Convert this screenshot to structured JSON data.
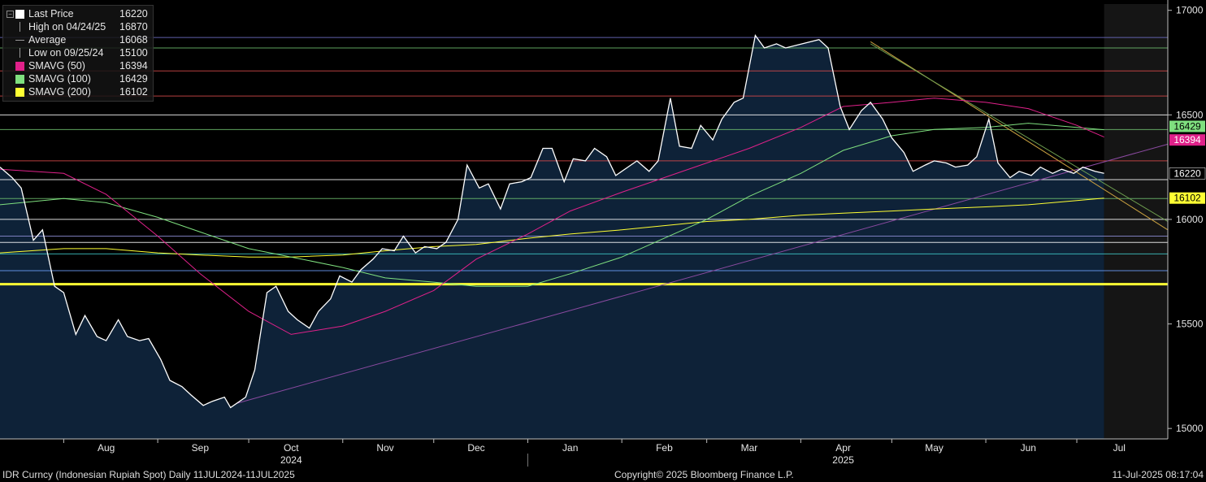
{
  "legend": {
    "items": [
      {
        "label": "Last Price",
        "value": "16220",
        "symbol": "square",
        "color": "#ffffff"
      },
      {
        "label": "High on 04/24/25",
        "value": "16870",
        "symbol": "high-marker",
        "color": "#9a9a9a"
      },
      {
        "label": "Average",
        "value": "16068",
        "symbol": "average-marker",
        "color": "#9a9a9a"
      },
      {
        "label": "Low on 09/25/24",
        "value": "15100",
        "symbol": "low-marker",
        "color": "#9a9a9a"
      },
      {
        "label": "SMAVG (50)",
        "value": "16394",
        "symbol": "square",
        "color": "#e0218a"
      },
      {
        "label": "SMAVG (100)",
        "value": "16429",
        "symbol": "square",
        "color": "#7fe07f"
      },
      {
        "label": "SMAVG (200)",
        "value": "16102",
        "symbol": "square",
        "color": "#ffff33"
      }
    ]
  },
  "footer": {
    "left": "IDR Curncy (Indonesian Rupiah Spot)  Daily 11JUL2024-11JUL2025",
    "center": "Copyright© 2025 Bloomberg Finance L.P.",
    "right": "11-Jul-2025 08:17:04"
  },
  "value_tags": [
    {
      "value": "16429",
      "color": "#7fe07f",
      "text_color": "#000000"
    },
    {
      "value": "16394",
      "color": "#e0218a",
      "text_color": "#ffffff"
    },
    {
      "value": "16220",
      "color": "#000000",
      "text_color": "#ffffff"
    },
    {
      "value": "16102",
      "color": "#ffff33",
      "text_color": "#000000"
    }
  ],
  "chart_data": {
    "type": "area",
    "ylim": [
      14950,
      17030
    ],
    "y_ticks": [
      15000,
      15500,
      16000,
      16500,
      17000
    ],
    "x_range": [
      "2024-07-11",
      "2025-07-31"
    ],
    "x_month_labels": [
      {
        "label": "Aug",
        "date": "2024-08-15"
      },
      {
        "label": "Sep",
        "date": "2024-09-15"
      },
      {
        "label": "Oct",
        "date": "2024-10-15"
      },
      {
        "label": "Nov",
        "date": "2024-11-15"
      },
      {
        "label": "Dec",
        "date": "2024-12-15"
      },
      {
        "label": "Jan",
        "date": "2025-01-15"
      },
      {
        "label": "Feb",
        "date": "2025-02-15"
      },
      {
        "label": "Mar",
        "date": "2025-03-15"
      },
      {
        "label": "Apr",
        "date": "2025-04-15"
      },
      {
        "label": "May",
        "date": "2025-05-15"
      },
      {
        "label": "Jun",
        "date": "2025-06-15"
      },
      {
        "label": "Jul",
        "date": "2025-07-15"
      }
    ],
    "x_year_labels": [
      {
        "label": "2024",
        "date": "2024-10-15"
      },
      {
        "label": "2025",
        "date": "2025-04-15"
      }
    ],
    "horizontal_lines": [
      {
        "value": 16870,
        "color": "#7070c8"
      },
      {
        "value": 16820,
        "color": "#6fbf6f"
      },
      {
        "value": 16710,
        "color": "#d84a4a"
      },
      {
        "value": 16590,
        "color": "#d84a4a"
      },
      {
        "value": 16500,
        "color": "#ffffff"
      },
      {
        "value": 16430,
        "color": "#6fbf6f"
      },
      {
        "value": 16280,
        "color": "#d84a4a"
      },
      {
        "value": 16190,
        "color": "#ffffff"
      },
      {
        "value": 16100,
        "color": "#6fbf6f"
      },
      {
        "value": 16000,
        "color": "#ffffff"
      },
      {
        "value": 15920,
        "color": "#9090d8"
      },
      {
        "value": 15890,
        "color": "#ffffff"
      },
      {
        "value": 15835,
        "color": "#40c8c8"
      },
      {
        "value": 15755,
        "color": "#6fa0ff"
      },
      {
        "value": 15690,
        "color": "#ffff33",
        "thick": true
      }
    ],
    "trend_lines": [
      {
        "from": [
          "2024-09-27",
          15120
        ],
        "to": [
          "2025-07-31",
          16360
        ],
        "color": "#8a4aa0"
      },
      {
        "from": [
          "2025-04-24",
          16850
        ],
        "to": [
          "2025-07-31",
          15950
        ],
        "color": "#c8a040"
      },
      {
        "from": [
          "2025-04-24",
          16840
        ],
        "to": [
          "2025-07-31",
          15990
        ],
        "color": "#6fa050"
      }
    ],
    "series": [
      {
        "name": "Last Price",
        "color": "#ffffff",
        "fill": "#0e2238",
        "x": [
          "2024-07-11",
          "2024-07-15",
          "2024-07-18",
          "2024-07-22",
          "2024-07-25",
          "2024-07-29",
          "2024-08-01",
          "2024-08-05",
          "2024-08-08",
          "2024-08-12",
          "2024-08-15",
          "2024-08-19",
          "2024-08-22",
          "2024-08-26",
          "2024-08-29",
          "2024-09-02",
          "2024-09-05",
          "2024-09-09",
          "2024-09-12",
          "2024-09-16",
          "2024-09-19",
          "2024-09-23",
          "2024-09-25",
          "2024-09-30",
          "2024-10-03",
          "2024-10-07",
          "2024-10-10",
          "2024-10-14",
          "2024-10-17",
          "2024-10-21",
          "2024-10-24",
          "2024-10-28",
          "2024-10-31",
          "2024-11-04",
          "2024-11-07",
          "2024-11-11",
          "2024-11-14",
          "2024-11-18",
          "2024-11-21",
          "2024-11-25",
          "2024-11-28",
          "2024-12-02",
          "2024-12-05",
          "2024-12-09",
          "2024-12-12",
          "2024-12-16",
          "2024-12-19",
          "2024-12-23",
          "2024-12-26",
          "2024-12-30",
          "2025-01-02",
          "2025-01-06",
          "2025-01-09",
          "2025-01-13",
          "2025-01-16",
          "2025-01-20",
          "2025-01-23",
          "2025-01-27",
          "2025-01-30",
          "2025-02-03",
          "2025-02-06",
          "2025-02-10",
          "2025-02-13",
          "2025-02-17",
          "2025-02-20",
          "2025-02-24",
          "2025-02-27",
          "2025-03-03",
          "2025-03-06",
          "2025-03-10",
          "2025-03-13",
          "2025-03-17",
          "2025-03-20",
          "2025-03-24",
          "2025-03-27",
          "2025-04-07",
          "2025-04-10",
          "2025-04-14",
          "2025-04-17",
          "2025-04-21",
          "2025-04-24",
          "2025-04-28",
          "2025-05-01",
          "2025-05-05",
          "2025-05-08",
          "2025-05-12",
          "2025-05-15",
          "2025-05-19",
          "2025-05-22",
          "2025-05-26",
          "2025-05-29",
          "2025-06-02",
          "2025-06-05",
          "2025-06-09",
          "2025-06-12",
          "2025-06-16",
          "2025-06-19",
          "2025-06-23",
          "2025-06-26",
          "2025-06-30",
          "2025-07-03",
          "2025-07-07",
          "2025-07-10"
        ],
        "values": [
          16250,
          16200,
          16150,
          15900,
          15950,
          15680,
          15650,
          15450,
          15540,
          15440,
          15420,
          15520,
          15440,
          15420,
          15430,
          15330,
          15230,
          15200,
          15160,
          15110,
          15130,
          15150,
          15100,
          15150,
          15280,
          15650,
          15680,
          15560,
          15520,
          15480,
          15560,
          15620,
          15730,
          15700,
          15760,
          15810,
          15860,
          15850,
          15920,
          15840,
          15870,
          15860,
          15890,
          16000,
          16260,
          16150,
          16170,
          16050,
          16170,
          16180,
          16200,
          16340,
          16340,
          16180,
          16290,
          16280,
          16340,
          16300,
          16210,
          16250,
          16280,
          16230,
          16280,
          16580,
          16350,
          16340,
          16450,
          16380,
          16480,
          16560,
          16580,
          16880,
          16820,
          16840,
          16820,
          16860,
          16820,
          16540,
          16430,
          16520,
          16560,
          16480,
          16390,
          16320,
          16230,
          16260,
          16280,
          16270,
          16250,
          16260,
          16300,
          16480,
          16270,
          16200,
          16230,
          16210,
          16250,
          16220,
          16240,
          16220,
          16250,
          16230,
          16220
        ]
      },
      {
        "name": "SMAVG (50)",
        "color": "#e0218a",
        "x": [
          "2024-07-11",
          "2024-08-01",
          "2024-08-15",
          "2024-09-01",
          "2024-09-15",
          "2024-10-01",
          "2024-10-15",
          "2024-11-01",
          "2024-11-15",
          "2024-12-01",
          "2024-12-15",
          "2025-01-01",
          "2025-01-15",
          "2025-02-01",
          "2025-02-15",
          "2025-03-01",
          "2025-03-15",
          "2025-04-01",
          "2025-04-15",
          "2025-05-01",
          "2025-05-15",
          "2025-06-01",
          "2025-06-15",
          "2025-07-01",
          "2025-07-10"
        ],
        "values": [
          16240,
          16220,
          16120,
          15920,
          15740,
          15560,
          15450,
          15490,
          15560,
          15660,
          15810,
          15930,
          16040,
          16130,
          16200,
          16270,
          16340,
          16440,
          16540,
          16560,
          16580,
          16560,
          16530,
          16450,
          16394
        ]
      },
      {
        "name": "SMAVG (100)",
        "color": "#7fe07f",
        "x": [
          "2024-07-11",
          "2024-08-01",
          "2024-08-15",
          "2024-09-01",
          "2024-09-15",
          "2024-10-01",
          "2024-10-15",
          "2024-11-01",
          "2024-11-15",
          "2024-12-01",
          "2024-12-15",
          "2025-01-01",
          "2025-01-15",
          "2025-02-01",
          "2025-02-15",
          "2025-03-01",
          "2025-03-15",
          "2025-04-01",
          "2025-04-15",
          "2025-05-01",
          "2025-05-15",
          "2025-06-01",
          "2025-06-15",
          "2025-07-01",
          "2025-07-10"
        ],
        "values": [
          16070,
          16100,
          16080,
          16010,
          15940,
          15860,
          15820,
          15770,
          15720,
          15700,
          15680,
          15680,
          15740,
          15820,
          15910,
          16000,
          16110,
          16220,
          16330,
          16400,
          16430,
          16440,
          16460,
          16440,
          16429
        ]
      },
      {
        "name": "SMAVG (200)",
        "color": "#ffff33",
        "x": [
          "2024-07-11",
          "2024-08-01",
          "2024-08-15",
          "2024-09-01",
          "2024-09-15",
          "2024-10-01",
          "2024-10-15",
          "2024-11-01",
          "2024-11-15",
          "2024-12-01",
          "2024-12-15",
          "2025-01-01",
          "2025-01-15",
          "2025-02-01",
          "2025-02-15",
          "2025-03-01",
          "2025-03-15",
          "2025-04-01",
          "2025-04-15",
          "2025-05-01",
          "2025-05-15",
          "2025-06-01",
          "2025-06-15",
          "2025-07-01",
          "2025-07-10"
        ],
        "values": [
          15840,
          15860,
          15860,
          15840,
          15830,
          15820,
          15820,
          15830,
          15850,
          15870,
          15880,
          15910,
          15930,
          15950,
          15970,
          15990,
          16000,
          16020,
          16030,
          16040,
          16050,
          16060,
          16070,
          16090,
          16102
        ]
      }
    ]
  }
}
